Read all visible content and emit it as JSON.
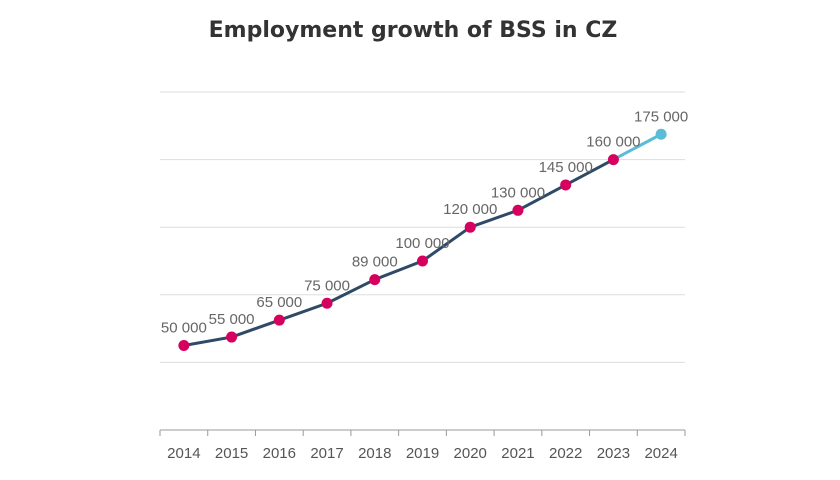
{
  "chart_data": {
    "type": "line",
    "title": "Employment growth of BSS in CZ",
    "xlabel": "",
    "ylabel": "",
    "categories": [
      "2014",
      "2015",
      "2016",
      "2017",
      "2018",
      "2019",
      "2020",
      "2021",
      "2022",
      "2023",
      "2024"
    ],
    "values": [
      50000,
      55000,
      65000,
      75000,
      89000,
      100000,
      120000,
      130000,
      145000,
      160000,
      175000
    ],
    "value_labels": [
      "50 000",
      "55 000",
      "65 000",
      "75 000",
      "89 000",
      "100 000",
      "120 000",
      "130 000",
      "145 000",
      "160 000",
      "175 000"
    ],
    "ylim": [
      0,
      200000
    ],
    "grid": true,
    "y_tick_labels_shown": false,
    "forecast_from_index": 9,
    "colors": {
      "line": "#2e4a66",
      "point": "#d6005f",
      "forecast": "#5bbcd6",
      "grid": "#dddddd",
      "axis": "#999999",
      "title": "#333333"
    }
  }
}
